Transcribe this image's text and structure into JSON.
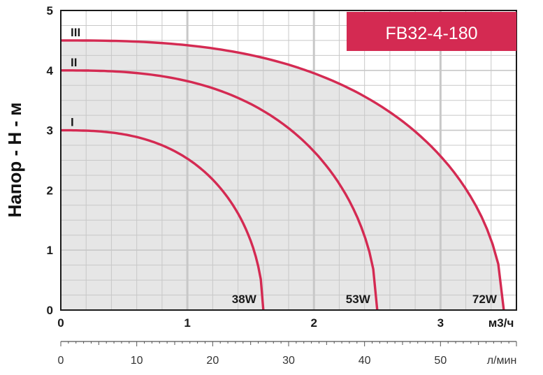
{
  "chart_data": {
    "type": "line",
    "model_badge": "FB32-4-180",
    "ylabel": "Напор - H - м",
    "x_unit_label": "м3/ч",
    "x2_unit_label": "л/мин",
    "xlim": [
      0,
      3.6
    ],
    "ylim": [
      0,
      5
    ],
    "x_ticks": [
      "0",
      "1",
      "2",
      "3"
    ],
    "y_ticks": [
      "0",
      "1",
      "2",
      "3",
      "4",
      "5"
    ],
    "x2_ticks": [
      "0",
      "10",
      "20",
      "30",
      "40",
      "50"
    ],
    "x2_range_lmin": [
      0,
      60
    ],
    "grid": true,
    "series": [
      {
        "name": "I",
        "power_label": "38W",
        "h0": 3.0,
        "qmax": 1.6,
        "x": [
          0,
          0.4,
          0.8,
          1.2,
          1.4,
          1.5,
          1.6
        ],
        "y": [
          3.0,
          2.85,
          2.35,
          1.55,
          0.95,
          0.55,
          0.0
        ]
      },
      {
        "name": "II",
        "power_label": "53W",
        "h0": 4.0,
        "qmax": 2.5,
        "x": [
          0,
          0.5,
          1.0,
          1.5,
          2.0,
          2.3,
          2.5
        ],
        "y": [
          4.0,
          3.85,
          3.4,
          2.7,
          1.6,
          0.85,
          0.0
        ]
      },
      {
        "name": "III",
        "power_label": "72W",
        "h0": 4.5,
        "qmax": 3.5,
        "x": [
          0,
          0.5,
          1.0,
          1.5,
          2.0,
          2.5,
          3.0,
          3.3,
          3.5
        ],
        "y": [
          4.5,
          4.45,
          4.3,
          4.05,
          3.6,
          3.0,
          2.0,
          1.15,
          0.0
        ]
      }
    ],
    "colors": {
      "curve": "#d42a52",
      "fill": "#e6e6e6",
      "grid": "#c8c8c8",
      "badge": "#d42a52",
      "axis": "#1a1a1a"
    }
  }
}
